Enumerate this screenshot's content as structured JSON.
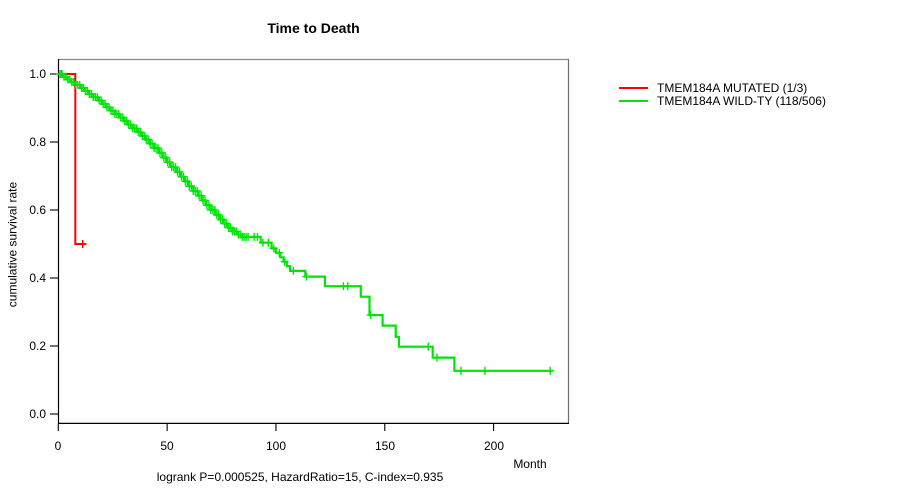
{
  "chart_data": {
    "type": "line",
    "subtype": "kaplan-meier-step",
    "title": "Time to Death",
    "xlabel": "Month",
    "ylabel": "cumulative survival rate",
    "annotation": "logrank P=0.000525, HazardRatio=15, C-index=0.935",
    "xlim": [
      0,
      235
    ],
    "ylim": [
      0,
      1.0
    ],
    "xticks": [
      0,
      50,
      100,
      150,
      200
    ],
    "yticks": [
      0,
      0.2,
      0.4,
      0.6,
      0.8,
      1.0
    ],
    "ytick_labels": [
      "0.0",
      "0.2",
      "0.4",
      "0.6",
      "0.8",
      "1.0"
    ],
    "grid": false,
    "legend_position": "right-outside",
    "axis_color": "#000000",
    "box_color": "#8a8a8a",
    "series": [
      {
        "id": "mutated",
        "name": "TMEM184A MUTATED (1/3)",
        "color": "#ff0000",
        "step": true,
        "width": 2,
        "points": [
          [
            0,
            1.0
          ],
          [
            7.8,
            1.0
          ],
          [
            7.8,
            0.5
          ],
          [
            12.4,
            0.5
          ]
        ],
        "censor_months": [
          1.5,
          11.2
        ]
      },
      {
        "id": "wildtype",
        "name": "TMEM184A WILD-TY (118/506)",
        "color": "#00e308",
        "step": true,
        "width": 2.2,
        "points": [
          [
            0,
            1.0
          ],
          [
            2,
            0.992
          ],
          [
            4,
            0.984
          ],
          [
            6,
            0.976
          ],
          [
            8,
            0.968
          ],
          [
            10,
            0.959
          ],
          [
            12,
            0.95
          ],
          [
            14,
            0.941
          ],
          [
            16,
            0.932
          ],
          [
            18,
            0.922
          ],
          [
            20,
            0.912
          ],
          [
            22,
            0.902
          ],
          [
            24,
            0.892
          ],
          [
            26,
            0.882
          ],
          [
            28,
            0.872
          ],
          [
            30,
            0.862
          ],
          [
            32,
            0.851
          ],
          [
            34,
            0.84
          ],
          [
            36,
            0.829
          ],
          [
            38,
            0.818
          ],
          [
            40,
            0.807
          ],
          [
            42,
            0.795
          ],
          [
            44,
            0.782
          ],
          [
            46,
            0.768
          ],
          [
            48,
            0.754
          ],
          [
            50,
            0.74
          ],
          [
            52,
            0.726
          ],
          [
            54,
            0.712
          ],
          [
            56,
            0.698
          ],
          [
            58,
            0.684
          ],
          [
            60,
            0.67
          ],
          [
            62,
            0.656
          ],
          [
            64,
            0.642
          ],
          [
            66,
            0.628
          ],
          [
            68,
            0.614
          ],
          [
            70,
            0.6
          ],
          [
            72,
            0.586
          ],
          [
            74,
            0.572
          ],
          [
            76,
            0.56
          ],
          [
            78,
            0.548
          ],
          [
            80,
            0.537
          ],
          [
            82,
            0.528
          ],
          [
            84,
            0.521
          ],
          [
            93,
            0.504
          ],
          [
            98,
            0.487
          ],
          [
            100,
            0.474
          ],
          [
            102,
            0.461
          ],
          [
            103.5,
            0.448
          ],
          [
            105,
            0.435
          ],
          [
            106.5,
            0.421
          ],
          [
            113.5,
            0.404
          ],
          [
            122.5,
            0.376
          ],
          [
            139,
            0.345
          ],
          [
            143,
            0.291
          ],
          [
            149,
            0.26
          ],
          [
            155,
            0.227
          ],
          [
            156.5,
            0.198
          ],
          [
            172,
            0.166
          ],
          [
            182,
            0.127
          ],
          [
            227,
            0.127
          ]
        ],
        "censor_months": [
          0.8,
          1.7,
          2.6,
          3.5,
          4.4,
          5.3,
          6.2,
          7.1,
          8,
          8.9,
          9.8,
          10.7,
          11.6,
          12.5,
          13.4,
          14.3,
          15.2,
          16.1,
          17,
          17.9,
          18.8,
          19.7,
          20.6,
          21.5,
          22.4,
          23.3,
          24.2,
          25.1,
          26,
          26.9,
          27.8,
          28.7,
          29.6,
          30.5,
          31.4,
          32.3,
          33.2,
          34.1,
          35,
          35.9,
          36.8,
          37.7,
          38.6,
          39.5,
          40.4,
          41.3,
          42.2,
          43.1,
          44,
          44.9,
          45.8,
          46.7,
          47.6,
          48.5,
          49.4,
          50.3,
          51.2,
          52.1,
          53,
          53.9,
          54.8,
          55.7,
          56.6,
          57.5,
          58.4,
          59.3,
          60.2,
          61.1,
          62,
          62.9,
          63.8,
          64.7,
          65.6,
          66.5,
          67.4,
          68.3,
          69.2,
          70.1,
          71,
          71.9,
          72.8,
          73.7,
          74.6,
          75.5,
          76.4,
          77.3,
          78.2,
          79.1,
          80,
          80.9,
          81.8,
          82.7,
          83.6,
          84.5,
          85.4,
          86.3,
          87.2,
          90,
          91.5,
          94,
          96.5,
          99,
          101.5,
          104,
          108,
          114,
          131,
          133,
          143.5,
          170,
          174,
          185,
          196,
          226
        ]
      }
    ]
  }
}
